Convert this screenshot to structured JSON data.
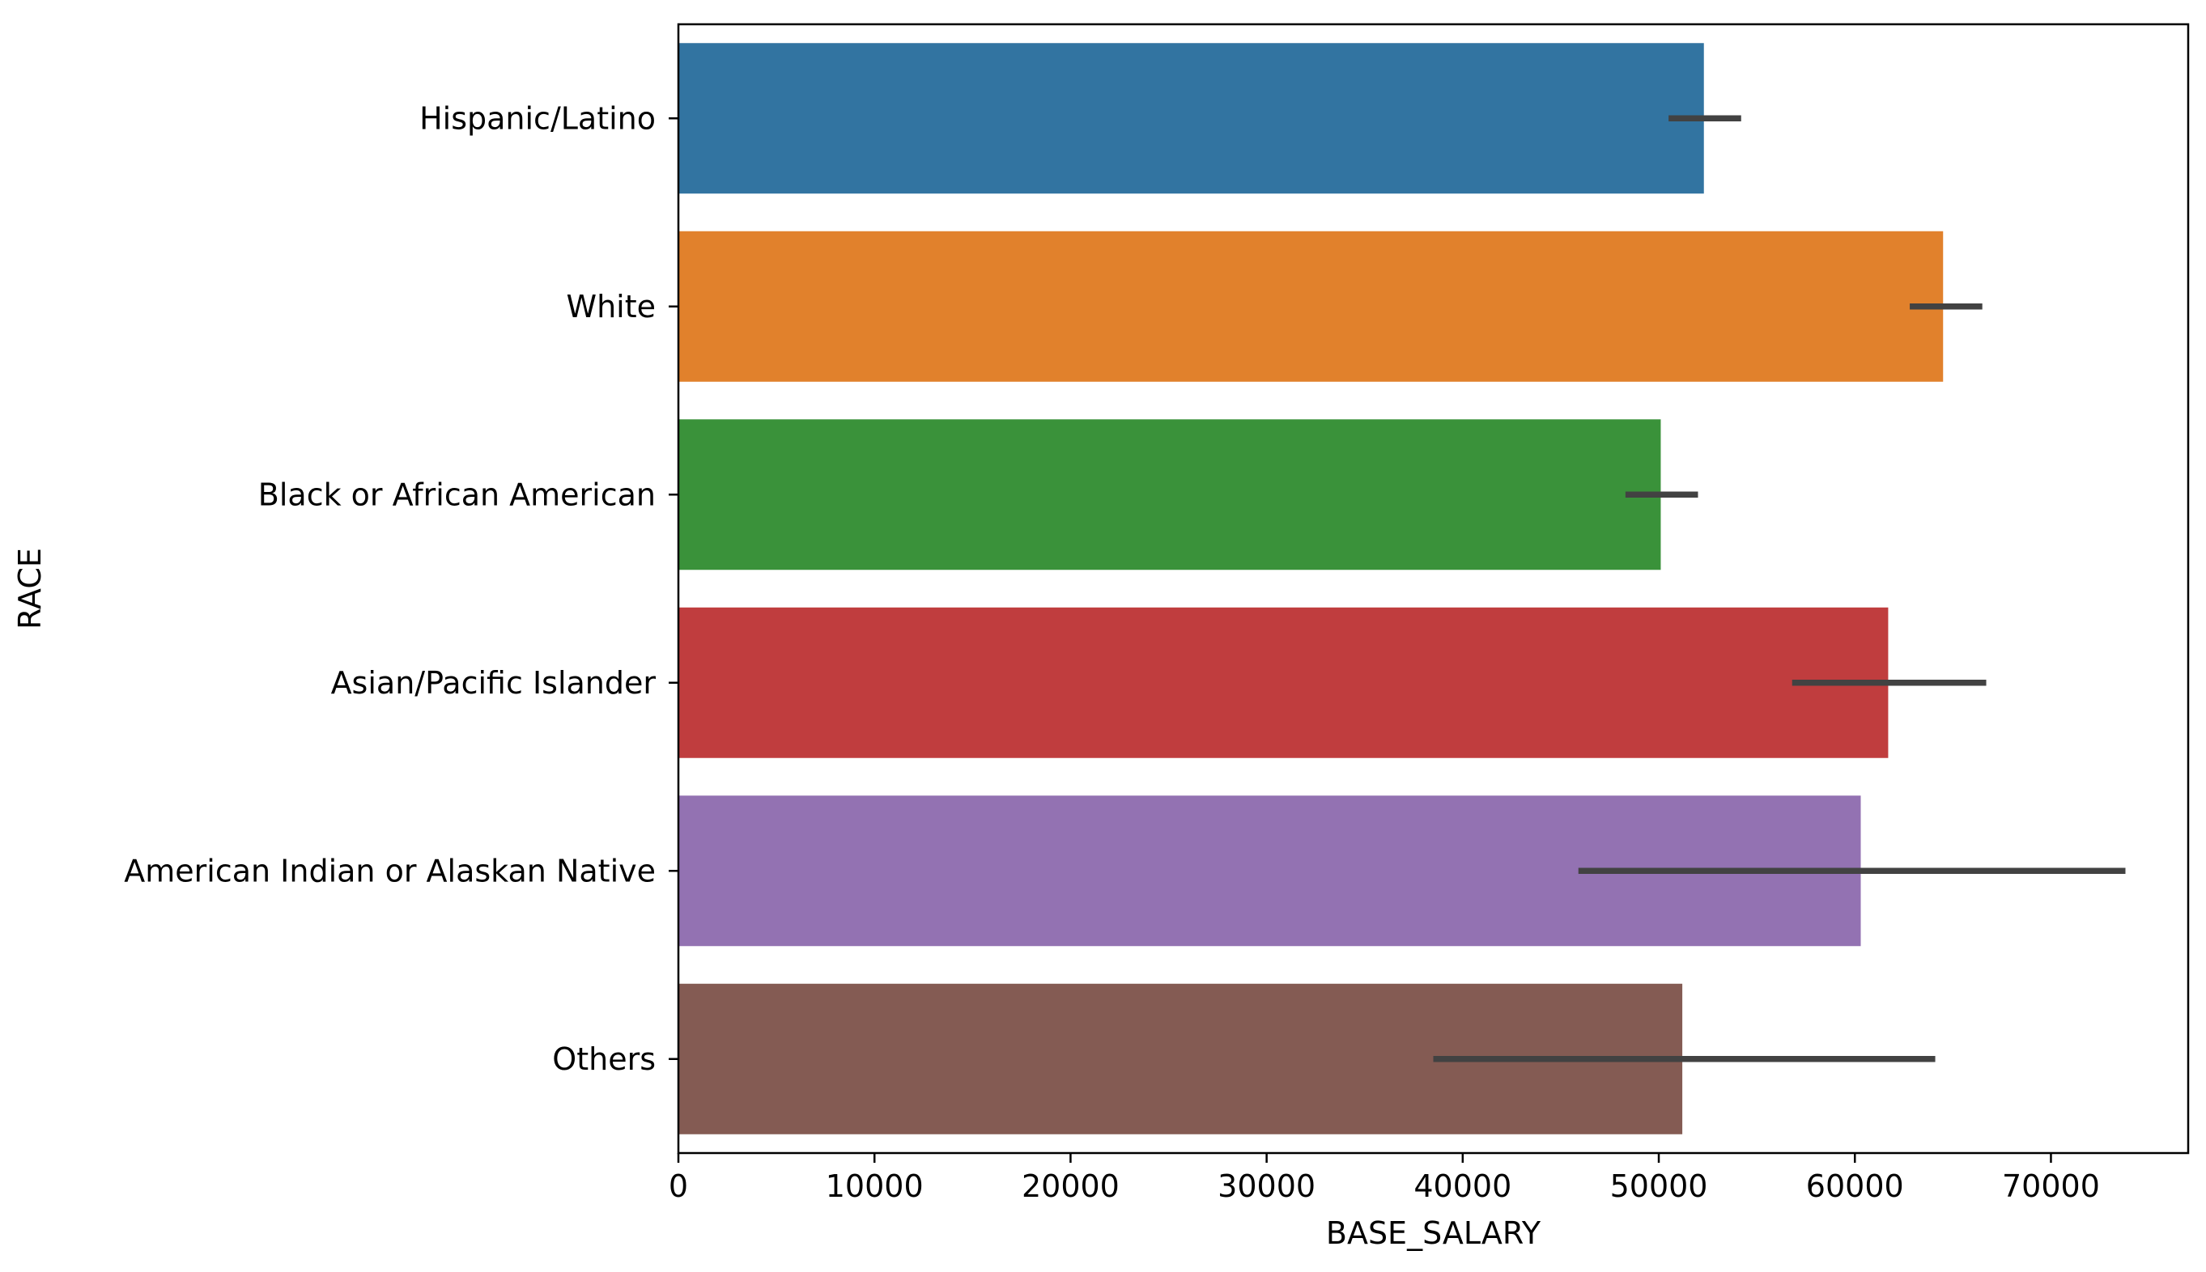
{
  "chart_data": {
    "type": "bar",
    "orientation": "horizontal",
    "title": "",
    "xlabel": "BASE_SALARY",
    "ylabel": "RACE",
    "xlim": [
      0,
      77000
    ],
    "xticks": [
      0,
      10000,
      20000,
      30000,
      40000,
      50000,
      60000,
      70000
    ],
    "grid": false,
    "legend": "none",
    "categories": [
      "Hispanic/Latino",
      "White",
      "Black or African American",
      "Asian/Pacific Islander",
      "American Indian or Alaskan Native",
      "Others"
    ],
    "values": [
      52300,
      64500,
      50100,
      61700,
      60300,
      51200
    ],
    "error_bars": [
      [
        50500,
        54200
      ],
      [
        62800,
        66500
      ],
      [
        48300,
        52000
      ],
      [
        56800,
        66700
      ],
      [
        45900,
        73800
      ],
      [
        38500,
        64100
      ]
    ],
    "colors": [
      "#3274a1",
      "#e1812c",
      "#3a923a",
      "#c03d3e",
      "#9372b2",
      "#845b53"
    ],
    "errorbar_color": "#424242"
  }
}
